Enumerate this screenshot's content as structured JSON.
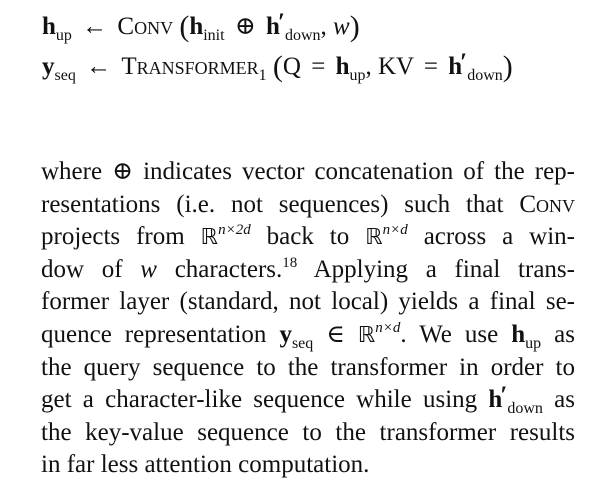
{
  "equations": {
    "eq1": {
      "lhs_var": "h",
      "lhs_sub": "up",
      "arrow": "←",
      "op_name": "Conv",
      "arg1_var": "h",
      "arg1_sub": "init",
      "concat": "⊕",
      "arg2_var": "h",
      "arg2_prime": "′",
      "arg2_sub": "down",
      "arg3": "w"
    },
    "eq2": {
      "lhs_var": "y",
      "lhs_sub": "seq",
      "arrow": "←",
      "op_name": "Transformer",
      "op_sub": "1",
      "q_label": "Q",
      "eq_sign": "=",
      "q_var": "h",
      "q_sub": "up",
      "kv_label": "KV",
      "kv_var": "h",
      "kv_prime": "′",
      "kv_sub": "down"
    }
  },
  "paragraph": {
    "l1": "where ⊕ indicates vector concatenation of the rep-",
    "l2a": "resentations (i.e.  not sequences) such that ",
    "l2b": "Conv",
    "l3a": "projects from ",
    "l3_R1": "ℝ",
    "l3_sup1": "n×2d",
    "l3b": " back to ",
    "l3_R2": "ℝ",
    "l3_sup2": "n×d",
    "l3c": " across a win-",
    "l4a": "dow of ",
    "l4_w": "w",
    "l4b": " characters.",
    "l4_fn": "18",
    "l4c": "  Applying a final trans-",
    "l5": "former layer (standard, not local) yields a final se-",
    "l6a": "quence representation ",
    "l6_y": "y",
    "l6_ysub": "seq",
    "l6b": " ∈ ",
    "l6_R": "ℝ",
    "l6_sup": "n×d",
    "l6c": ". We use ",
    "l6_h": "h",
    "l6_hsub": "up",
    "l6d": " as",
    "l7": "the query sequence to the transformer in order to",
    "l8a": "get a character-like sequence while using ",
    "l8_h": "h",
    "l8_prime": "′",
    "l8_sub": "down",
    "l8b": " as",
    "l9": "the key-value sequence to the transformer results",
    "l10": "in far less attention computation."
  }
}
